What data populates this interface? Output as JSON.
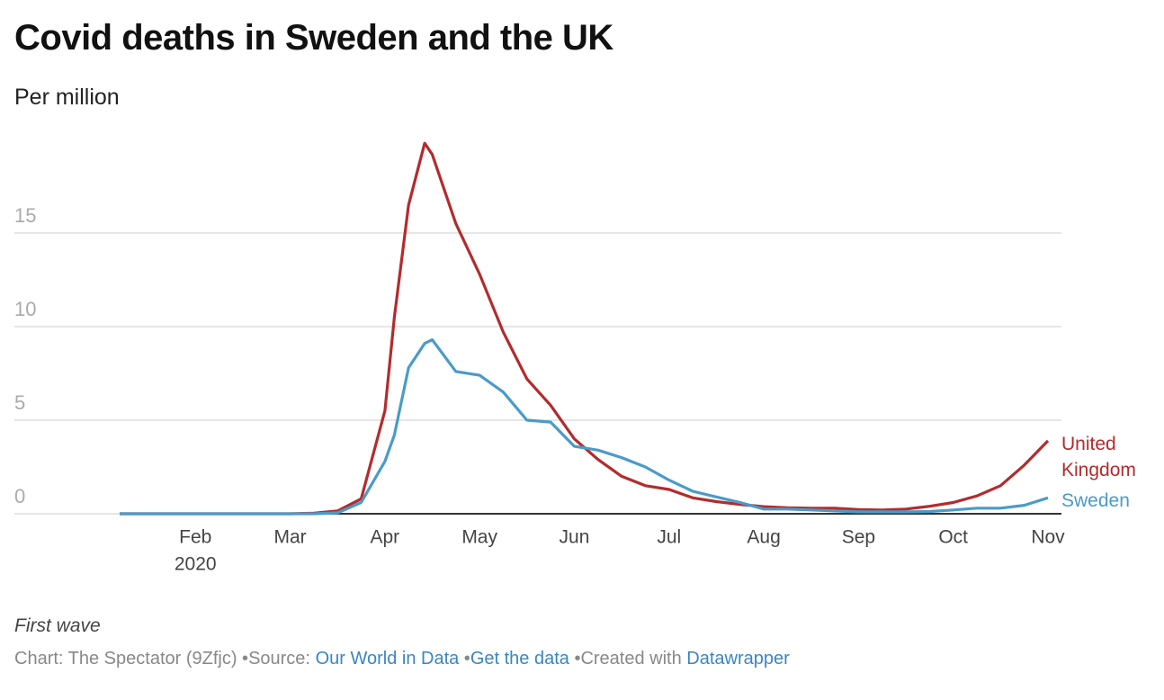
{
  "chart_data": {
    "type": "line",
    "title": "Covid deaths in Sweden and the UK",
    "subtitle": "Per million",
    "x": [
      1.2,
      2,
      3,
      3.25,
      3.5,
      3.75,
      4,
      4.1,
      4.25,
      4.42,
      4.5,
      4.75,
      5,
      5.25,
      5.5,
      5.75,
      6,
      6.25,
      6.5,
      6.75,
      7,
      7.25,
      7.5,
      7.75,
      8,
      8.25,
      8.5,
      8.75,
      9,
      9.25,
      9.5,
      9.75,
      10,
      10.25,
      10.5,
      10.75,
      11
    ],
    "series": [
      {
        "name": "United Kingdom",
        "color": "#b32b2d",
        "values": [
          0,
          0,
          0,
          0.03,
          0.15,
          0.8,
          5.5,
          10.5,
          16.5,
          19.8,
          19.2,
          15.5,
          12.8,
          9.7,
          7.2,
          5.8,
          4.0,
          2.9,
          2.0,
          1.5,
          1.3,
          0.85,
          0.65,
          0.5,
          0.38,
          0.32,
          0.3,
          0.3,
          0.22,
          0.2,
          0.25,
          0.4,
          0.6,
          0.95,
          1.5,
          2.6,
          3.9
        ]
      },
      {
        "name": "Sweden",
        "color": "#4a9bc8",
        "values": [
          0,
          0,
          0,
          0,
          0.05,
          0.6,
          2.8,
          4.2,
          7.8,
          9.1,
          9.3,
          7.6,
          7.4,
          6.5,
          5.0,
          4.9,
          3.6,
          3.4,
          3.0,
          2.5,
          1.8,
          1.2,
          0.9,
          0.6,
          0.25,
          0.25,
          0.2,
          0.15,
          0.1,
          0.1,
          0.1,
          0.12,
          0.2,
          0.3,
          0.3,
          0.45,
          0.85
        ]
      }
    ],
    "xlim": [
      1.2,
      11
    ],
    "xticks": [
      {
        "value": 2,
        "label": "Feb"
      },
      {
        "value": 3,
        "label": "Mar"
      },
      {
        "value": 4,
        "label": "Apr"
      },
      {
        "value": 5,
        "label": "May"
      },
      {
        "value": 6,
        "label": "Jun"
      },
      {
        "value": 7,
        "label": "Jul"
      },
      {
        "value": 8,
        "label": "Aug"
      },
      {
        "value": 9,
        "label": "Sep"
      },
      {
        "value": 10,
        "label": "Oct"
      },
      {
        "value": 11,
        "label": "Nov"
      }
    ],
    "x_year_label": "2020",
    "ylim": [
      0,
      20
    ],
    "yticks": [
      0,
      5,
      10,
      15
    ],
    "grid": true,
    "legend": "line-end"
  },
  "footer": {
    "note": "First wave",
    "byline": "Chart: The Spectator (9Zfjc)",
    "source_label": "Source:",
    "source": "Our World in Data",
    "get_data": "Get the data",
    "created_with": "Created with",
    "tool": "Datawrapper"
  }
}
